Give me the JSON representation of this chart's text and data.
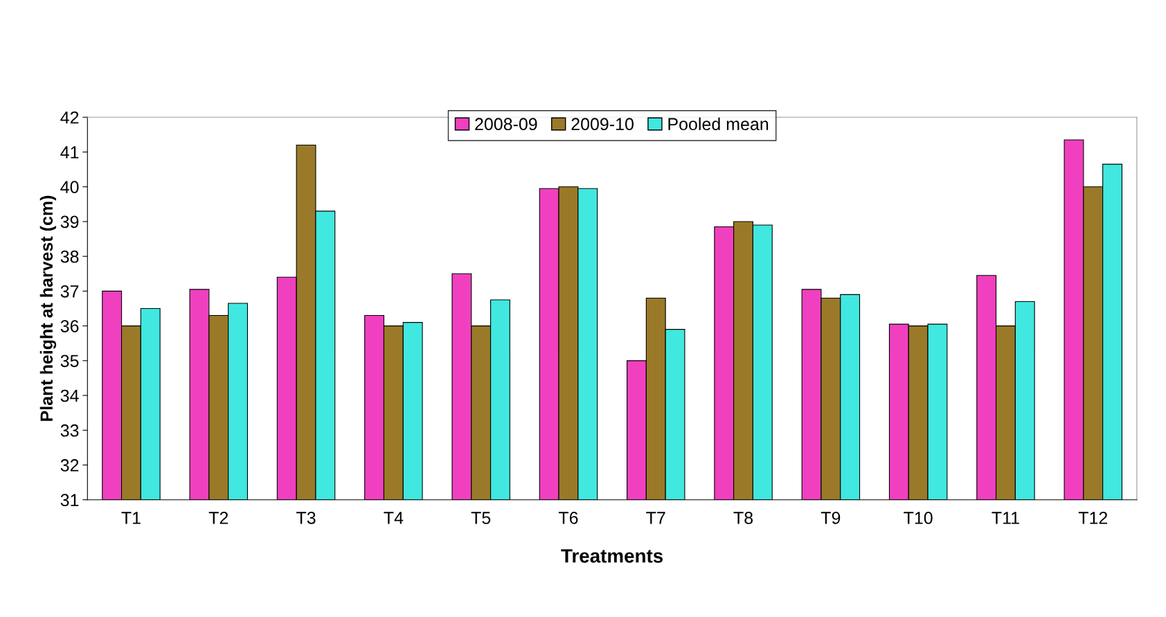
{
  "chart_data": {
    "type": "bar",
    "xlabel": "Treatments",
    "ylabel": "Plant height at harvest (cm)",
    "categories": [
      "T1",
      "T2",
      "T3",
      "T4",
      "T5",
      "T6",
      "T7",
      "T8",
      "T9",
      "T10",
      "T11",
      "T12"
    ],
    "series": [
      {
        "name": "2008-09",
        "color": "#f040c0",
        "values": [
          37.0,
          37.05,
          37.4,
          36.3,
          37.5,
          39.95,
          35.0,
          38.85,
          37.05,
          36.05,
          37.45,
          41.35
        ]
      },
      {
        "name": "2009-10",
        "color": "#9a7a28",
        "values": [
          36.0,
          36.3,
          41.2,
          36.0,
          36.0,
          40.0,
          36.8,
          39.0,
          36.8,
          36.0,
          36.0,
          40.0
        ]
      },
      {
        "name": "Pooled mean",
        "color": "#40e8e0",
        "values": [
          36.5,
          36.65,
          39.3,
          36.1,
          36.75,
          39.95,
          35.9,
          38.9,
          36.9,
          36.05,
          36.7,
          40.65
        ]
      }
    ],
    "ylim": [
      31,
      42
    ],
    "yticks": [
      31,
      32,
      33,
      34,
      35,
      36,
      37,
      38,
      39,
      40,
      41,
      42
    ],
    "grid": false,
    "legend": "top"
  }
}
